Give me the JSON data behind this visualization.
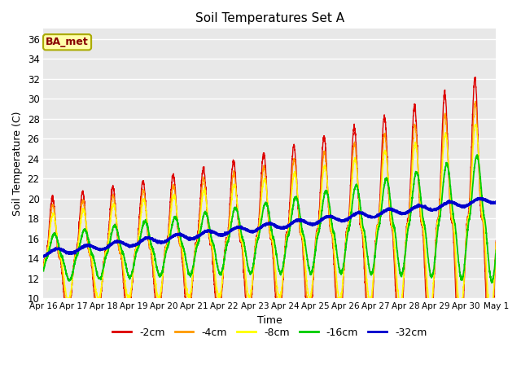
{
  "title": "Soil Temperatures Set A",
  "xlabel": "Time",
  "ylabel": "Soil Temperature (C)",
  "annotation": "BA_met",
  "ylim": [
    10,
    37
  ],
  "yticks": [
    10,
    12,
    14,
    16,
    18,
    20,
    22,
    24,
    26,
    28,
    30,
    32,
    34,
    36
  ],
  "xtick_labels": [
    "Apr 16",
    "Apr 17",
    "Apr 18",
    "Apr 19",
    "Apr 20",
    "Apr 21",
    "Apr 22",
    "Apr 23",
    "Apr 24",
    "Apr 25",
    "Apr 26",
    "Apr 27",
    "Apr 28",
    "Apr 29",
    "Apr 30",
    "May 1"
  ],
  "colors": {
    "-2cm": "#dd0000",
    "-4cm": "#ff9900",
    "-8cm": "#ffff00",
    "-16cm": "#00cc00",
    "-32cm": "#0000cc"
  },
  "background_color": "#e8e8e8",
  "grid_color": "#ffffff",
  "legend_labels": [
    "-2cm",
    "-4cm",
    "-8cm",
    "-16cm",
    "-32cm"
  ]
}
